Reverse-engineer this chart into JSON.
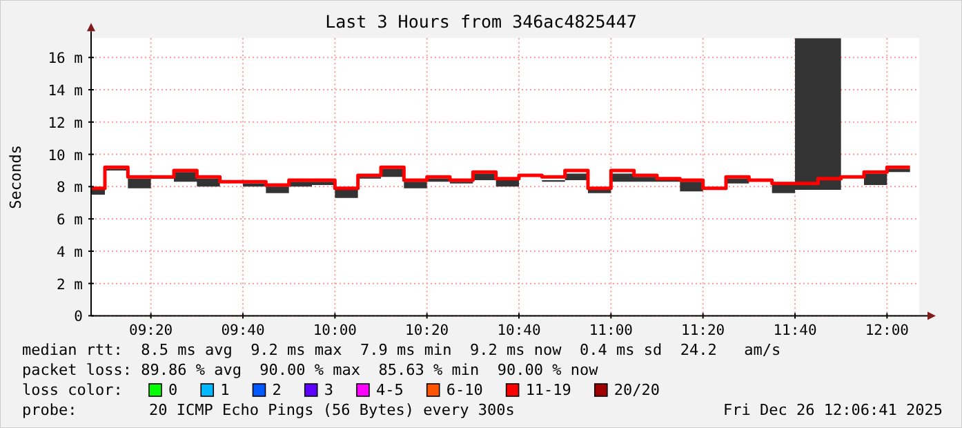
{
  "chart_data": {
    "type": "step",
    "title": "Last 3 Hours from 346ac4825447",
    "ylabel": "Seconds",
    "x": [
      "2025-12-26T09:07",
      "2025-12-26T09:10",
      "2025-12-26T09:15",
      "2025-12-26T09:20",
      "2025-12-26T09:25",
      "2025-12-26T09:30",
      "2025-12-26T09:35",
      "2025-12-26T09:40",
      "2025-12-26T09:45",
      "2025-12-26T09:50",
      "2025-12-26T09:55",
      "2025-12-26T10:00",
      "2025-12-26T10:05",
      "2025-12-26T10:10",
      "2025-12-26T10:15",
      "2025-12-26T10:20",
      "2025-12-26T10:25",
      "2025-12-26T10:30",
      "2025-12-26T10:35",
      "2025-12-26T10:40",
      "2025-12-26T10:45",
      "2025-12-26T10:50",
      "2025-12-26T10:55",
      "2025-12-26T11:00",
      "2025-12-26T11:05",
      "2025-12-26T11:10",
      "2025-12-26T11:15",
      "2025-12-26T11:20",
      "2025-12-26T11:25",
      "2025-12-26T11:30",
      "2025-12-26T11:35",
      "2025-12-26T11:40",
      "2025-12-26T11:45",
      "2025-12-26T11:50",
      "2025-12-26T11:55",
      "2025-12-26T12:00",
      "2025-12-26T12:05"
    ],
    "series": [
      {
        "color": "#ff0000",
        "values": [
          7.9,
          9.2,
          8.6,
          8.6,
          9.0,
          8.6,
          8.3,
          8.3,
          8.1,
          8.4,
          8.4,
          7.9,
          8.7,
          9.2,
          8.4,
          8.6,
          8.4,
          8.9,
          8.5,
          8.7,
          8.6,
          9.0,
          7.9,
          9.0,
          8.7,
          8.5,
          8.4,
          7.9,
          8.6,
          8.4,
          8.2,
          8.2,
          8.5,
          8.6,
          8.9,
          9.2,
          9.2
        ],
        "lower": [
          7.5,
          9.0,
          7.9,
          8.5,
          8.3,
          8.0,
          8.2,
          8.0,
          7.6,
          8.0,
          8.1,
          7.3,
          8.5,
          8.6,
          7.9,
          8.3,
          8.2,
          8.4,
          8.0,
          8.6,
          8.3,
          8.4,
          7.6,
          8.3,
          8.3,
          8.3,
          7.7,
          7.8,
          8.2,
          8.3,
          7.6,
          7.8,
          7.8,
          8.5,
          8.1,
          8.9,
          8.9
        ],
        "upper": [
          7.9,
          9.1,
          8.5,
          8.6,
          8.9,
          8.5,
          8.2,
          8.2,
          8.0,
          8.3,
          8.3,
          7.8,
          8.6,
          9.1,
          8.3,
          8.5,
          8.3,
          8.8,
          8.4,
          8.6,
          8.4,
          8.8,
          7.8,
          8.8,
          8.6,
          8.4,
          8.3,
          7.8,
          8.5,
          8.3,
          8.1,
          17.2,
          17.2,
          8.5,
          8.8,
          9.1,
          9.1
        ]
      }
    ],
    "xlim": [
      "2025-12-26T09:07",
      "2025-12-26T12:07"
    ],
    "xticks": [
      {
        "value": "2025-12-26T09:20",
        "label": "09:20"
      },
      {
        "value": "2025-12-26T09:40",
        "label": "09:40"
      },
      {
        "value": "2025-12-26T10:00",
        "label": "10:00"
      },
      {
        "value": "2025-12-26T10:20",
        "label": "10:20"
      },
      {
        "value": "2025-12-26T10:40",
        "label": "10:40"
      },
      {
        "value": "2025-12-26T11:00",
        "label": "11:00"
      },
      {
        "value": "2025-12-26T11:20",
        "label": "11:20"
      },
      {
        "value": "2025-12-26T11:40",
        "label": "11:40"
      },
      {
        "value": "2025-12-26T12:00",
        "label": "12:00"
      }
    ],
    "ylim": [
      0,
      17.2
    ],
    "yticks": [
      0,
      {
        "value": 2,
        "label": "2 m"
      },
      {
        "value": 4,
        "label": "4 m"
      },
      {
        "value": 6,
        "label": "6 m"
      },
      {
        "value": 8,
        "label": "8 m"
      },
      {
        "value": 10,
        "label": "10 m"
      },
      {
        "value": 12,
        "label": "12 m"
      },
      {
        "value": 14,
        "label": "14 m"
      },
      {
        "value": 16,
        "label": "16 m"
      }
    ],
    "grid": true,
    "annotations": [
      "median rtt:  8.5 ms avg  9.2 ms max  7.9 ms min  9.2 ms now  0.4 ms sd  24.2   am/s",
      "packet loss: 89.86 % avg  90.00 % max  85.63 % min  90.00 % now",
      "loss color:",
      "0",
      "1",
      "2",
      "3",
      "4-5",
      "6-10",
      "11-19",
      "20/20",
      "probe:",
      "20 ICMP Echo Pings (56 Bytes) every 300s",
      "Fri Dec 26 12:06:41 2025"
    ]
  }
}
